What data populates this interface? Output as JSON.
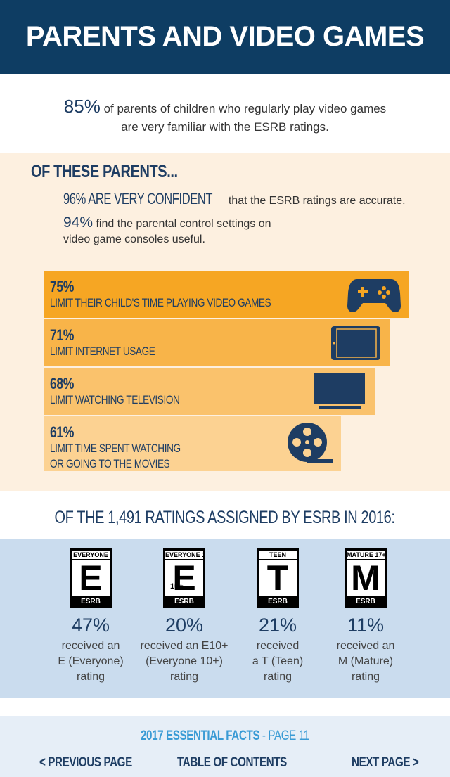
{
  "header": {
    "title": "PARENTS AND VIDEO GAMES"
  },
  "intro": {
    "stat": "85%",
    "text_line1": "of parents of children who regularly play video games",
    "text_line2": "are very familiar with the ESRB ratings."
  },
  "parents": {
    "heading": "OF THESE PARENTS...",
    "fact1": {
      "highlight": "96% ARE VERY CONFIDENT",
      "text": "that the ESRB ratings are accurate."
    },
    "fact2": {
      "highlight": "94%",
      "text_line1": "find the parental control settings on",
      "text_line2": "video game consoles useful."
    }
  },
  "limits": [
    {
      "value": 75,
      "label": "75%",
      "text_lines": [
        "LIMIT THEIR CHILD'S TIME PLAYING VIDEO GAMES"
      ],
      "color": "#f6a623"
    },
    {
      "value": 71,
      "label": "71%",
      "text_lines": [
        "LIMIT INTERNET USAGE"
      ],
      "color": "#f8b449"
    },
    {
      "value": 68,
      "label": "68%",
      "text_lines": [
        "LIMIT WATCHING TELEVISION"
      ],
      "color": "#fac26c"
    },
    {
      "value": 61,
      "label": "61%",
      "text_lines": [
        "LIMIT TIME SPENT WATCHING",
        "OR GOING TO THE MOVIES"
      ],
      "color": "#fcd292"
    }
  ],
  "ratings": {
    "heading": "OF THE 1,491 RATINGS ASSIGNED BY ESRB IN 2016:",
    "brand": "ESRB",
    "items": [
      {
        "badge": "EVERYONE",
        "letter": "E",
        "percent": "47%",
        "lines": [
          "received an",
          "E (Everyone)",
          "rating"
        ]
      },
      {
        "badge": "EVERYONE 10+",
        "letter": "E",
        "sub": "10+",
        "percent": "20%",
        "lines": [
          "received an E10+",
          "(Everyone 10+)",
          "rating"
        ]
      },
      {
        "badge": "TEEN",
        "letter": "T",
        "percent": "21%",
        "lines": [
          "received",
          "a T (Teen)",
          "rating"
        ]
      },
      {
        "badge": "MATURE 17+",
        "letter": "M",
        "percent": "11%",
        "lines": [
          "received an",
          "M (Mature)",
          "rating"
        ]
      }
    ]
  },
  "footer": {
    "title": "2017 ESSENTIAL FACTS",
    "page": "- PAGE 11",
    "prev": "< PREVIOUS PAGE",
    "toc": "TABLE OF CONTENTS",
    "next": "NEXT PAGE >"
  }
}
